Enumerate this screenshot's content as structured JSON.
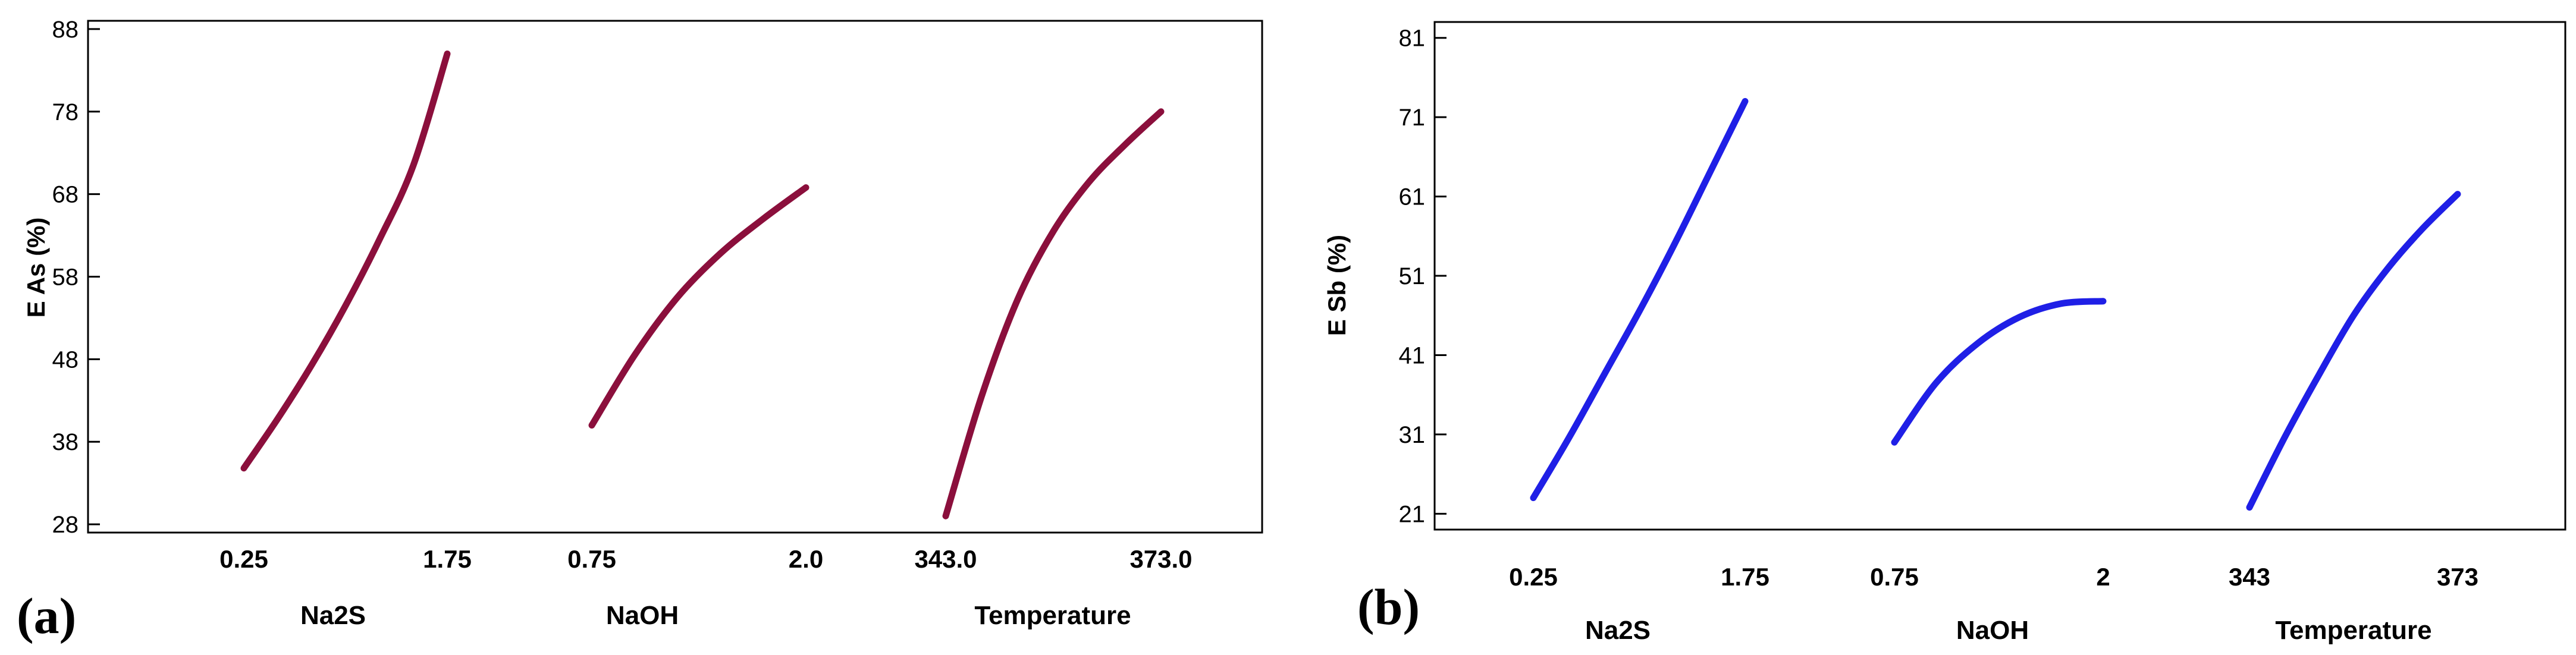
{
  "chart_data": [
    {
      "type": "line",
      "chart_subtype": "main effects plot",
      "panel_label": "(a)",
      "ylabel": "E As (%)",
      "yticks": [
        "28",
        "38",
        "48",
        "58",
        "68",
        "78",
        "88"
      ],
      "ylim": [
        27,
        89
      ],
      "color": "#8b0f3c",
      "factors": [
        {
          "name": "Na2S",
          "low_label": "0.25",
          "high_label": "1.75",
          "low": 0.25,
          "high": 1.75,
          "x": [
            0.25,
            0.5,
            0.75,
            1.0,
            1.25,
            1.5,
            1.75
          ],
          "y": [
            34.8,
            40.8,
            47.3,
            54.5,
            62.5,
            71.5,
            85.0
          ]
        },
        {
          "name": "NaOH",
          "low_label": "0.75",
          "high_label": "2.0",
          "low": 0.75,
          "high": 2.0,
          "x": [
            0.75,
            1.0,
            1.25,
            1.5,
            1.75,
            2.0
          ],
          "y": [
            40.0,
            48.5,
            55.5,
            60.8,
            65.0,
            68.8
          ]
        },
        {
          "name": "Temperature",
          "low_label": "343.0",
          "high_label": "373.0",
          "low": 343.0,
          "high": 373.0,
          "x": [
            343,
            348,
            353,
            358,
            363,
            368,
            373
          ],
          "y": [
            29.0,
            43.5,
            55.2,
            63.5,
            69.5,
            74.0,
            78.0
          ]
        }
      ]
    },
    {
      "type": "line",
      "chart_subtype": "main effects plot",
      "panel_label": "(b)",
      "ylabel": "E Sb (%)",
      "yticks": [
        "21",
        "31",
        "41",
        "51",
        "61",
        "71",
        "81"
      ],
      "ylim": [
        19,
        83
      ],
      "color": "#1f1fe6",
      "factors": [
        {
          "name": "Na2S",
          "low_label": "0.25",
          "high_label": "1.75",
          "low": 0.25,
          "high": 1.75,
          "x": [
            0.25,
            0.5,
            0.75,
            1.0,
            1.25,
            1.5,
            1.75
          ],
          "y": [
            23.0,
            30.5,
            38.5,
            46.5,
            55.0,
            64.0,
            73.0
          ]
        },
        {
          "name": "NaOH",
          "low_label": "0.75",
          "high_label": "2",
          "low": 0.75,
          "high": 2.0,
          "x": [
            0.75,
            1.0,
            1.25,
            1.5,
            1.75,
            2.0
          ],
          "y": [
            30.0,
            37.5,
            42.5,
            45.8,
            47.5,
            47.8
          ]
        },
        {
          "name": "Temperature",
          "low_label": "343",
          "high_label": "373",
          "low": 343,
          "high": 373,
          "x": [
            343,
            348,
            353,
            358,
            363,
            368,
            373
          ],
          "y": [
            21.8,
            30.5,
            38.5,
            46.0,
            52.0,
            57.0,
            61.3
          ]
        }
      ]
    }
  ]
}
